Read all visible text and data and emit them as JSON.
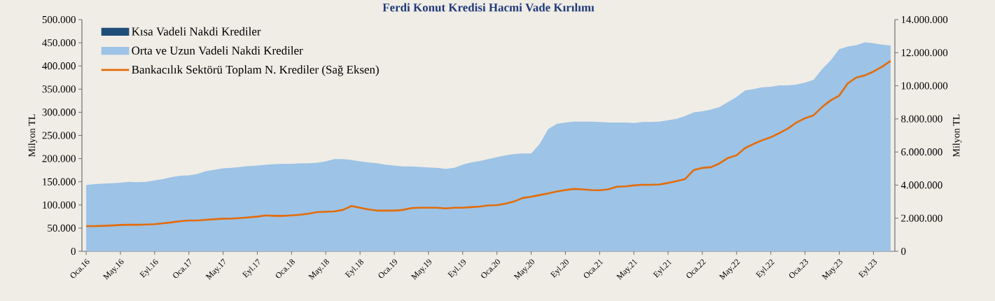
{
  "chart_data": {
    "type": "area",
    "title": "Ferdi Konut Kredisi Hacmi Vade Kırılımı",
    "ylabel": "Milyon TL",
    "y2label": "Milyon TL",
    "categories": [
      "Oca.16",
      null,
      null,
      null,
      "May.16",
      null,
      null,
      null,
      "Eyl.16",
      null,
      null,
      null,
      "Oca.17",
      null,
      null,
      null,
      "May.17",
      null,
      null,
      null,
      "Eyl.17",
      null,
      null,
      null,
      "Oca.18",
      null,
      null,
      null,
      "May.18",
      null,
      null,
      null,
      "Eyl.18",
      null,
      null,
      null,
      "Oca.19",
      null,
      null,
      null,
      "May.19",
      null,
      null,
      null,
      "Eyl.19",
      null,
      null,
      null,
      "Oca.20",
      null,
      null,
      null,
      "May.20",
      null,
      null,
      null,
      "Eyl.20",
      null,
      null,
      null,
      "Oca.21",
      null,
      null,
      null,
      "May.21",
      null,
      null,
      null,
      "Eyl.21",
      null,
      null,
      null,
      "Oca.22",
      null,
      null,
      null,
      "May.22",
      null,
      null,
      null,
      "Eyl.22",
      null,
      null,
      null,
      "Oca.23",
      null,
      null,
      null,
      "May.23",
      null,
      null,
      null,
      "Eyl.23",
      null,
      null
    ],
    "series": [
      {
        "name": "Kısa Vadeli Nakdi Krediler",
        "color": "#1f4e79",
        "values": [
          null,
          null,
          null,
          null,
          null,
          null,
          null,
          null,
          null,
          null,
          null,
          null,
          null,
          null,
          null,
          null,
          null,
          null,
          null,
          null,
          null,
          null,
          null,
          null,
          null,
          null,
          null,
          null,
          null,
          null,
          null,
          null,
          null,
          null,
          null,
          null,
          null,
          null,
          null,
          null,
          null,
          null,
          null,
          null,
          null,
          null,
          null,
          null,
          null,
          null,
          null,
          null,
          null,
          null,
          null,
          null,
          null,
          null,
          null,
          null,
          null,
          null,
          null,
          null,
          null,
          null,
          null,
          null,
          null,
          null,
          null,
          null,
          null,
          null,
          null,
          null,
          null,
          null,
          null,
          null,
          null,
          null,
          null,
          null,
          null,
          null,
          null,
          null,
          null,
          null,
          null,
          null,
          null,
          null,
          null
        ]
      },
      {
        "name": "Orta ve Uzun Vadeli Nakdi Krediler",
        "color": "#9dc3e6",
        "values": [
          143000,
          145000,
          146000,
          147000,
          148000,
          150000,
          149000,
          150000,
          153000,
          156000,
          160000,
          163000,
          164000,
          167000,
          173000,
          176000,
          179000,
          180000,
          182000,
          184000,
          185000,
          187000,
          188000,
          189000,
          189000,
          190000,
          190000,
          191000,
          194000,
          199000,
          199000,
          197000,
          194000,
          192000,
          190000,
          187000,
          185000,
          183000,
          183000,
          182000,
          181000,
          180000,
          178000,
          180000,
          187000,
          192000,
          195000,
          199000,
          203000,
          207000,
          210000,
          211000,
          211000,
          232000,
          264000,
          275000,
          278000,
          280000,
          280000,
          280000,
          279000,
          278000,
          278000,
          278000,
          277000,
          279000,
          279000,
          280000,
          283000,
          286000,
          292000,
          300000,
          302000,
          306000,
          311000,
          322000,
          333000,
          347000,
          350000,
          354000,
          355000,
          358000,
          358000,
          360000,
          364000,
          370000,
          393000,
          412000,
          436000,
          442000,
          445000,
          451000,
          449000,
          446000,
          444000
        ]
      },
      {
        "name": "Bankacılık Sektörü Toplam N. Krediler (Sağ Eksen)",
        "type": "line",
        "axis": "y2",
        "color": "#e36c0a",
        "values": [
          1520000,
          1520000,
          1540000,
          1560000,
          1590000,
          1600000,
          1600000,
          1620000,
          1640000,
          1690000,
          1750000,
          1820000,
          1860000,
          1860000,
          1900000,
          1940000,
          1970000,
          1980000,
          2010000,
          2050000,
          2100000,
          2170000,
          2140000,
          2140000,
          2170000,
          2210000,
          2270000,
          2370000,
          2390000,
          2410000,
          2500000,
          2740000,
          2630000,
          2530000,
          2460000,
          2460000,
          2460000,
          2500000,
          2610000,
          2630000,
          2630000,
          2630000,
          2590000,
          2630000,
          2630000,
          2670000,
          2710000,
          2770000,
          2790000,
          2880000,
          3010000,
          3220000,
          3300000,
          3400000,
          3500000,
          3620000,
          3700000,
          3770000,
          3740000,
          3700000,
          3690000,
          3740000,
          3900000,
          3920000,
          3980000,
          4020000,
          4020000,
          4040000,
          4130000,
          4240000,
          4370000,
          4910000,
          5040000,
          5080000,
          5310000,
          5640000,
          5800000,
          6240000,
          6490000,
          6710000,
          6890000,
          7140000,
          7420000,
          7780000,
          8040000,
          8220000,
          8720000,
          9120000,
          9410000,
          10150000,
          10500000,
          10630000,
          10860000,
          11150000,
          11500000
        ]
      }
    ],
    "ylim": [
      0,
      500000
    ],
    "yticks": [
      {
        "value": 0,
        "label": "0"
      },
      {
        "value": 50000,
        "label": "50.000"
      },
      {
        "value": 100000,
        "label": "100.000"
      },
      {
        "value": 150000,
        "label": "150.000"
      },
      {
        "value": 200000,
        "label": "200.000"
      },
      {
        "value": 250000,
        "label": "250.000"
      },
      {
        "value": 300000,
        "label": "300.000"
      },
      {
        "value": 350000,
        "label": "350.000"
      },
      {
        "value": 400000,
        "label": "400.000"
      },
      {
        "value": 450000,
        "label": "450.000"
      },
      {
        "value": 500000,
        "label": "500.000"
      }
    ],
    "y2lim": [
      0,
      14000000
    ],
    "y2ticks": [
      {
        "value": 0,
        "label": "0"
      },
      {
        "value": 2000000,
        "label": "2.000.000"
      },
      {
        "value": 4000000,
        "label": "4.000.000"
      },
      {
        "value": 6000000,
        "label": "6.000.000"
      },
      {
        "value": 8000000,
        "label": "8.000.000"
      },
      {
        "value": 10000000,
        "label": "10.000.000"
      },
      {
        "value": 12000000,
        "label": "12.000.000"
      },
      {
        "value": 14000000,
        "label": "14.000.000"
      }
    ],
    "legend": "top left",
    "marker": "none",
    "line_style": "solid"
  }
}
